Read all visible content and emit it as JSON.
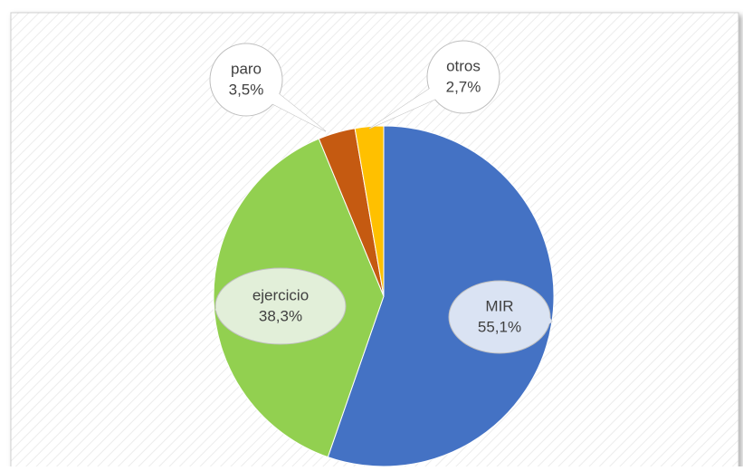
{
  "chart_data": {
    "type": "pie",
    "categories": [
      "MIR",
      "ejercicio",
      "paro",
      "otros"
    ],
    "values": [
      55.1,
      38.3,
      3.5,
      2.7
    ],
    "value_labels": [
      "55,1%",
      "38,3%",
      "3,5%",
      "2,7%"
    ],
    "colors": [
      "#4472c4",
      "#92d050",
      "#c55a11",
      "#ffc000"
    ]
  }
}
